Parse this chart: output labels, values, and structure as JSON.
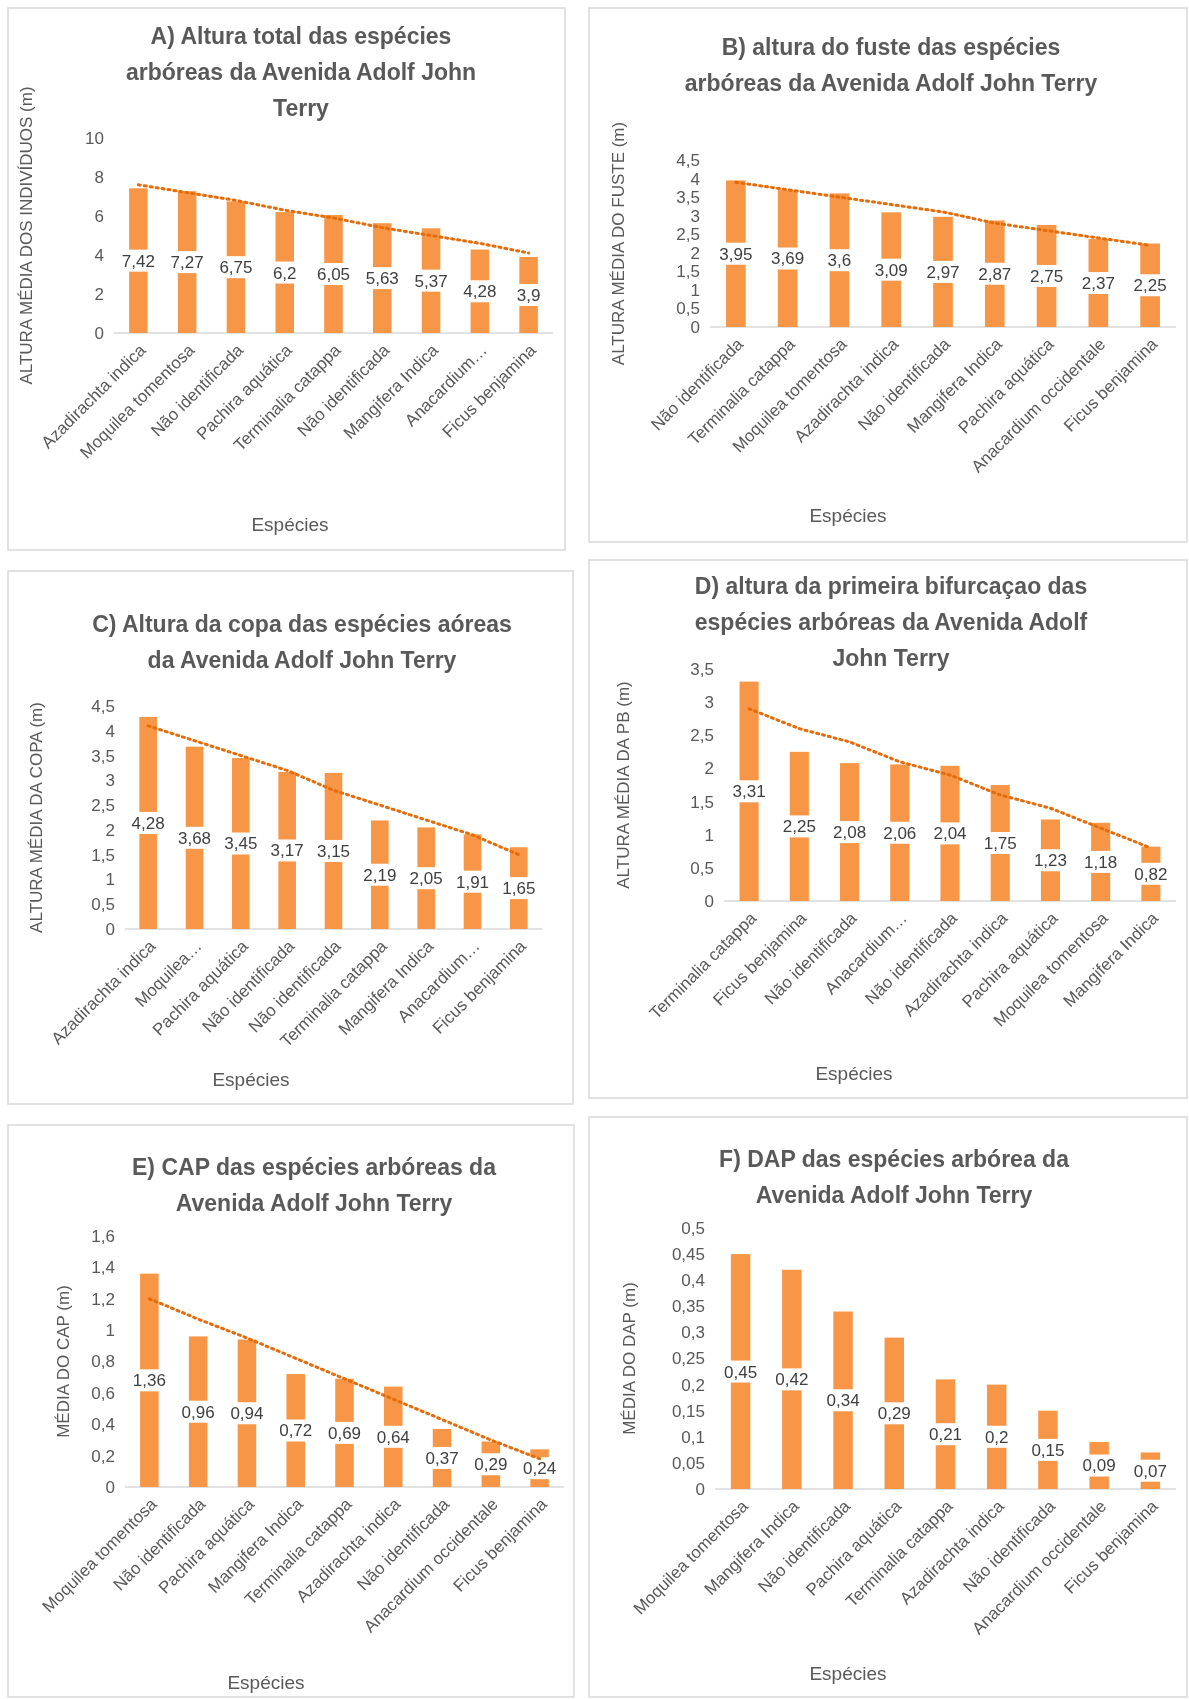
{
  "chart_data": [
    {
      "type": "bar",
      "title": "A) Altura total das espécies arbóreas da Avenida Adolf John Terry",
      "xlabel": "Espécies",
      "ylabel": "ALTURA MÉDIA DOS INDIVÍDUOS (m)",
      "categories": [
        "Azadirachta indica",
        "Moquilea tomentosa",
        "Não identificada",
        "Pachira aquática",
        "Terminalia catappa",
        "Não identificada",
        "Mangifera Indica",
        "Anacardium…",
        "Ficus benjamina"
      ],
      "ylim": [
        0,
        10
      ],
      "yticks": [
        0,
        2,
        4,
        6,
        8,
        10
      ],
      "series": [
        {
          "color": "#f79646",
          "values": [
            7.42,
            7.27,
            6.75,
            6.2,
            6.05,
            5.63,
            5.37,
            4.28,
            3.9
          ],
          "value_labels": [
            "7,42",
            "7,27",
            "6,75",
            "6,2",
            "6,05",
            "5,63",
            "5,37",
            "4,28",
            "3,9"
          ]
        },
        {
          "type": "line",
          "color": "#e46c0a",
          "line_style": "dotted",
          "values": [
            7.6,
            7.2,
            6.8,
            6.3,
            5.9,
            5.4,
            5.0,
            4.6,
            4.1
          ]
        }
      ]
    },
    {
      "type": "bar",
      "title": "B) altura do fuste das espécies arbóreas da Avenida Adolf John Terry",
      "xlabel": "Espécies",
      "ylabel": "ALTURA MÉDIA DO FUSTE (m)",
      "categories": [
        "Não identificada",
        "Terminalia catappa",
        "Moquilea tomentosa",
        "Azadirachta indica",
        "Não identificada",
        "Mangifera Indica",
        "Pachira aquática",
        "Anacardium occidentale",
        "Ficus benjamina"
      ],
      "ylim": [
        0,
        4.5
      ],
      "yticks": [
        0,
        {
          "value": 0.5,
          "label": "0,5"
        },
        1,
        {
          "value": 1.5,
          "label": "1,5"
        },
        2,
        {
          "value": 2.5,
          "label": "2,5"
        },
        3,
        {
          "value": 3.5,
          "label": "3,5"
        },
        4,
        {
          "value": 4.5,
          "label": "4,5"
        }
      ],
      "series": [
        {
          "color": "#f79646",
          "values": [
            3.95,
            3.69,
            3.6,
            3.09,
            2.97,
            2.87,
            2.75,
            2.37,
            2.25
          ],
          "value_labels": [
            "3,95",
            "3,69",
            "3,6",
            "3,09",
            "2,97",
            "2,87",
            "2,75",
            "2,37",
            "2,25"
          ]
        },
        {
          "type": "line",
          "color": "#e46c0a",
          "line_style": "dotted",
          "values": [
            3.9,
            3.7,
            3.5,
            3.3,
            3.1,
            2.8,
            2.6,
            2.4,
            2.2
          ]
        }
      ]
    },
    {
      "type": "bar",
      "title": "C) Altura da copa das espécies aóreas da Avenida Adolf John Terry",
      "xlabel": "Espécies",
      "ylabel": "ALTURA MÉDIA DA COPA (m)",
      "categories": [
        "Azadirachta indica",
        "Moquilea…",
        "Pachira aquática",
        "Não identificada",
        "Não identificada",
        "Terminalia catappa",
        "Mangifera Indica",
        "Anacardium…",
        "Ficus benjamina"
      ],
      "ylim": [
        0,
        4.5
      ],
      "yticks": [
        0,
        {
          "value": 0.5,
          "label": "0,5"
        },
        1,
        {
          "value": 1.5,
          "label": "1,5"
        },
        2,
        {
          "value": 2.5,
          "label": "2,5"
        },
        3,
        {
          "value": 3.5,
          "label": "3,5"
        },
        4,
        {
          "value": 4.5,
          "label": "4,5"
        }
      ],
      "series": [
        {
          "color": "#f79646",
          "values": [
            4.28,
            3.68,
            3.45,
            3.17,
            3.15,
            2.19,
            2.05,
            1.91,
            1.65
          ],
          "value_labels": [
            "4,28",
            "3,68",
            "3,45",
            "3,17",
            "3,15",
            "2,19",
            "2,05",
            "1,91",
            "1,65"
          ]
        },
        {
          "type": "line",
          "color": "#e46c0a",
          "line_style": "dotted",
          "values": [
            4.1,
            3.8,
            3.5,
            3.2,
            2.8,
            2.5,
            2.2,
            1.9,
            1.5
          ]
        }
      ]
    },
    {
      "type": "bar",
      "title": "D) altura da primeira bifurcaçao das espécies arbóreas da Avenida Adolf John Terry",
      "xlabel": "Espécies",
      "ylabel": "ALTURA MÉDIA DA PB (m)",
      "categories": [
        "Terminalia catappa",
        "Ficus benjamina",
        "Não identificada",
        "Anacardium…",
        "Não identificada",
        "Azadirachta indica",
        "Pachira aquática",
        "Moquilea tomentosa",
        "Mangifera Indica"
      ],
      "ylim": [
        0,
        3.5
      ],
      "yticks": [
        0,
        {
          "value": 0.5,
          "label": "0,5"
        },
        1,
        {
          "value": 1.5,
          "label": "1,5"
        },
        2,
        {
          "value": 2.5,
          "label": "2,5"
        },
        3,
        {
          "value": 3.5,
          "label": "3,5"
        }
      ],
      "series": [
        {
          "color": "#f79646",
          "values": [
            3.31,
            2.25,
            2.08,
            2.06,
            2.04,
            1.75,
            1.23,
            1.18,
            0.82
          ],
          "value_labels": [
            "3,31",
            "2,25",
            "2,08",
            "2,06",
            "2,04",
            "1,75",
            "1,23",
            "1,18",
            "0,82"
          ]
        },
        {
          "type": "line",
          "color": "#e46c0a",
          "line_style": "dotted",
          "values": [
            2.9,
            2.6,
            2.4,
            2.1,
            1.9,
            1.6,
            1.4,
            1.1,
            0.8
          ]
        }
      ]
    },
    {
      "type": "bar",
      "title": "E) CAP das espécies arbóreas da Avenida Adolf John Terry",
      "xlabel": "Espécies",
      "ylabel": "MÉDIA DO CAP (m)",
      "categories": [
        "Moquilea tomentosa",
        "Não identificada",
        "Pachira aquática",
        "Mangifera Indica",
        "Terminalia catappa",
        "Azadirachta indica",
        "Não identificada",
        "Anacardium occidentale",
        "Ficus benjamina"
      ],
      "ylim": [
        0,
        1.6
      ],
      "yticks": [
        0,
        {
          "value": 0.2,
          "label": "0,2"
        },
        {
          "value": 0.4,
          "label": "0,4"
        },
        {
          "value": 0.6,
          "label": "0,6"
        },
        {
          "value": 0.8,
          "label": "0,8"
        },
        1,
        {
          "value": 1.2,
          "label": "1,2"
        },
        {
          "value": 1.4,
          "label": "1,4"
        },
        {
          "value": 1.6,
          "label": "1,6"
        }
      ],
      "series": [
        {
          "color": "#f79646",
          "values": [
            1.36,
            0.96,
            0.94,
            0.72,
            0.69,
            0.64,
            0.37,
            0.29,
            0.24
          ],
          "value_labels": [
            "1,36",
            "0,96",
            "0,94",
            "0,72",
            "0,69",
            "0,64",
            "0,37",
            "0,29",
            "0,24"
          ]
        },
        {
          "type": "line",
          "color": "#e46c0a",
          "line_style": "dotted",
          "values": [
            1.2,
            1.07,
            0.95,
            0.82,
            0.69,
            0.56,
            0.43,
            0.3,
            0.18
          ]
        }
      ]
    },
    {
      "type": "bar",
      "title": "F) DAP das espécies arbórea da Avenida Adolf John Terry",
      "xlabel": "Espécies",
      "ylabel": "MÉDIA DO DAP (m)",
      "categories": [
        "Moquilea tomentosa",
        "Mangifera Indica",
        "Não identificada",
        "Pachira aquática",
        "Terminalia catappa",
        "Azadirachta indica",
        "Não identificada",
        "Anacardium occidentale",
        "Ficus benjamina"
      ],
      "ylim": [
        0,
        0.5
      ],
      "yticks": [
        0,
        {
          "value": 0.05,
          "label": "0,05"
        },
        {
          "value": 0.1,
          "label": "0,1"
        },
        {
          "value": 0.15,
          "label": "0,15"
        },
        {
          "value": 0.2,
          "label": "0,2"
        },
        {
          "value": 0.25,
          "label": "0,25"
        },
        {
          "value": 0.3,
          "label": "0,3"
        },
        {
          "value": 0.35,
          "label": "0,35"
        },
        {
          "value": 0.4,
          "label": "0,4"
        },
        {
          "value": 0.45,
          "label": "0,45"
        },
        {
          "value": 0.5,
          "label": "0,5"
        }
      ],
      "series": [
        {
          "color": "#f79646",
          "values": [
            0.45,
            0.42,
            0.34,
            0.29,
            0.21,
            0.2,
            0.15,
            0.09,
            0.07
          ],
          "value_labels": [
            "0,45",
            "0,42",
            "0,34",
            "0,29",
            "0,21",
            "0,2",
            "0,15",
            "0,09",
            "0,07"
          ]
        }
      ]
    }
  ]
}
